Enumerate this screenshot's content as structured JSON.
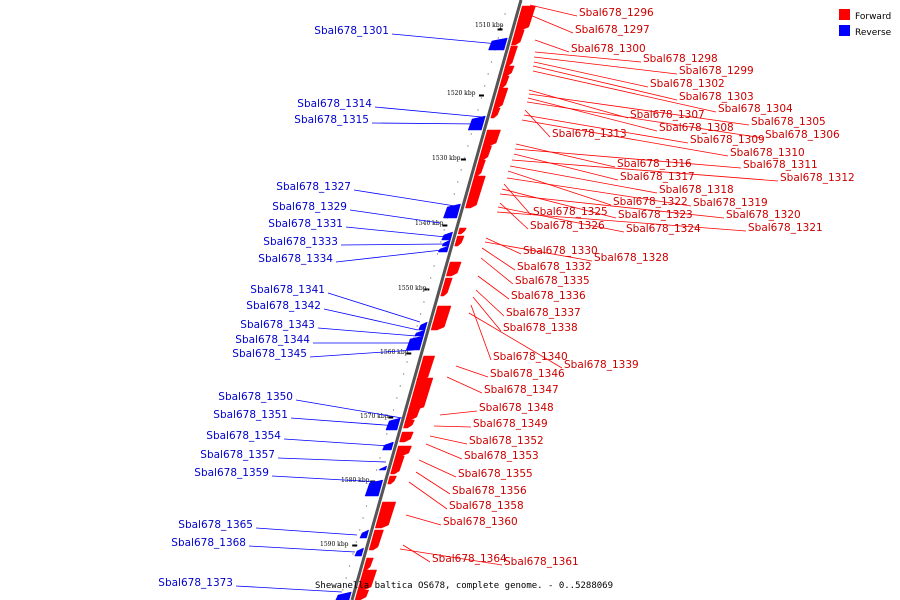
{
  "caption": "Shewanella baltica OS678, complete genome. - 0..5288069",
  "legend": [
    {
      "label": "Forward",
      "color": "#ff0000"
    },
    {
      "label": "Reverse",
      "color": "#0000ff"
    }
  ],
  "ticks": [
    "1510 kbp",
    "1520 kbp",
    "1530 kbp",
    "1540 kbp",
    "1550 kbp",
    "1560 kbp",
    "1570 kbp",
    "1580 kbp",
    "1590 kbp"
  ],
  "forward_genes": [
    "Sbal678_1296",
    "Sbal678_1297",
    "Sbal678_1300",
    "Sbal678_1298",
    "Sbal678_1299",
    "Sbal678_1302",
    "Sbal678_1303",
    "Sbal678_1304",
    "Sbal678_1307",
    "Sbal678_1305",
    "Sbal678_1308",
    "Sbal678_1306",
    "Sbal678_1313",
    "Sbal678_1309",
    "Sbal678_1310",
    "Sbal678_1316",
    "Sbal678_1311",
    "Sbal678_1317",
    "Sbal678_1312",
    "Sbal678_1318",
    "Sbal678_1322",
    "Sbal678_1319",
    "Sbal678_1325",
    "Sbal678_1323",
    "Sbal678_1320",
    "Sbal678_1326",
    "Sbal678_1324",
    "Sbal678_1321",
    "Sbal678_1330",
    "Sbal678_1328",
    "Sbal678_1332",
    "Sbal678_1335",
    "Sbal678_1336",
    "Sbal678_1337",
    "Sbal678_1338",
    "Sbal678_1340",
    "Sbal678_1339",
    "Sbal678_1346",
    "Sbal678_1347",
    "Sbal678_1348",
    "Sbal678_1349",
    "Sbal678_1352",
    "Sbal678_1353",
    "Sbal678_1355",
    "Sbal678_1356",
    "Sbal678_1358",
    "Sbal678_1360",
    "Sbal678_1364",
    "Sbal678_1361"
  ],
  "reverse_genes": [
    "Sbal678_1301",
    "Sbal678_1314",
    "Sbal678_1315",
    "Sbal678_1327",
    "Sbal678_1329",
    "Sbal678_1331",
    "Sbal678_1333",
    "Sbal678_1334",
    "Sbal678_1341",
    "Sbal678_1342",
    "Sbal678_1343",
    "Sbal678_1344",
    "Sbal678_1345",
    "Sbal678_1350",
    "Sbal678_1351",
    "Sbal678_1354",
    "Sbal678_1357",
    "Sbal678_1359",
    "Sbal678_1365",
    "Sbal678_1368",
    "Sbal678_1373"
  ]
}
